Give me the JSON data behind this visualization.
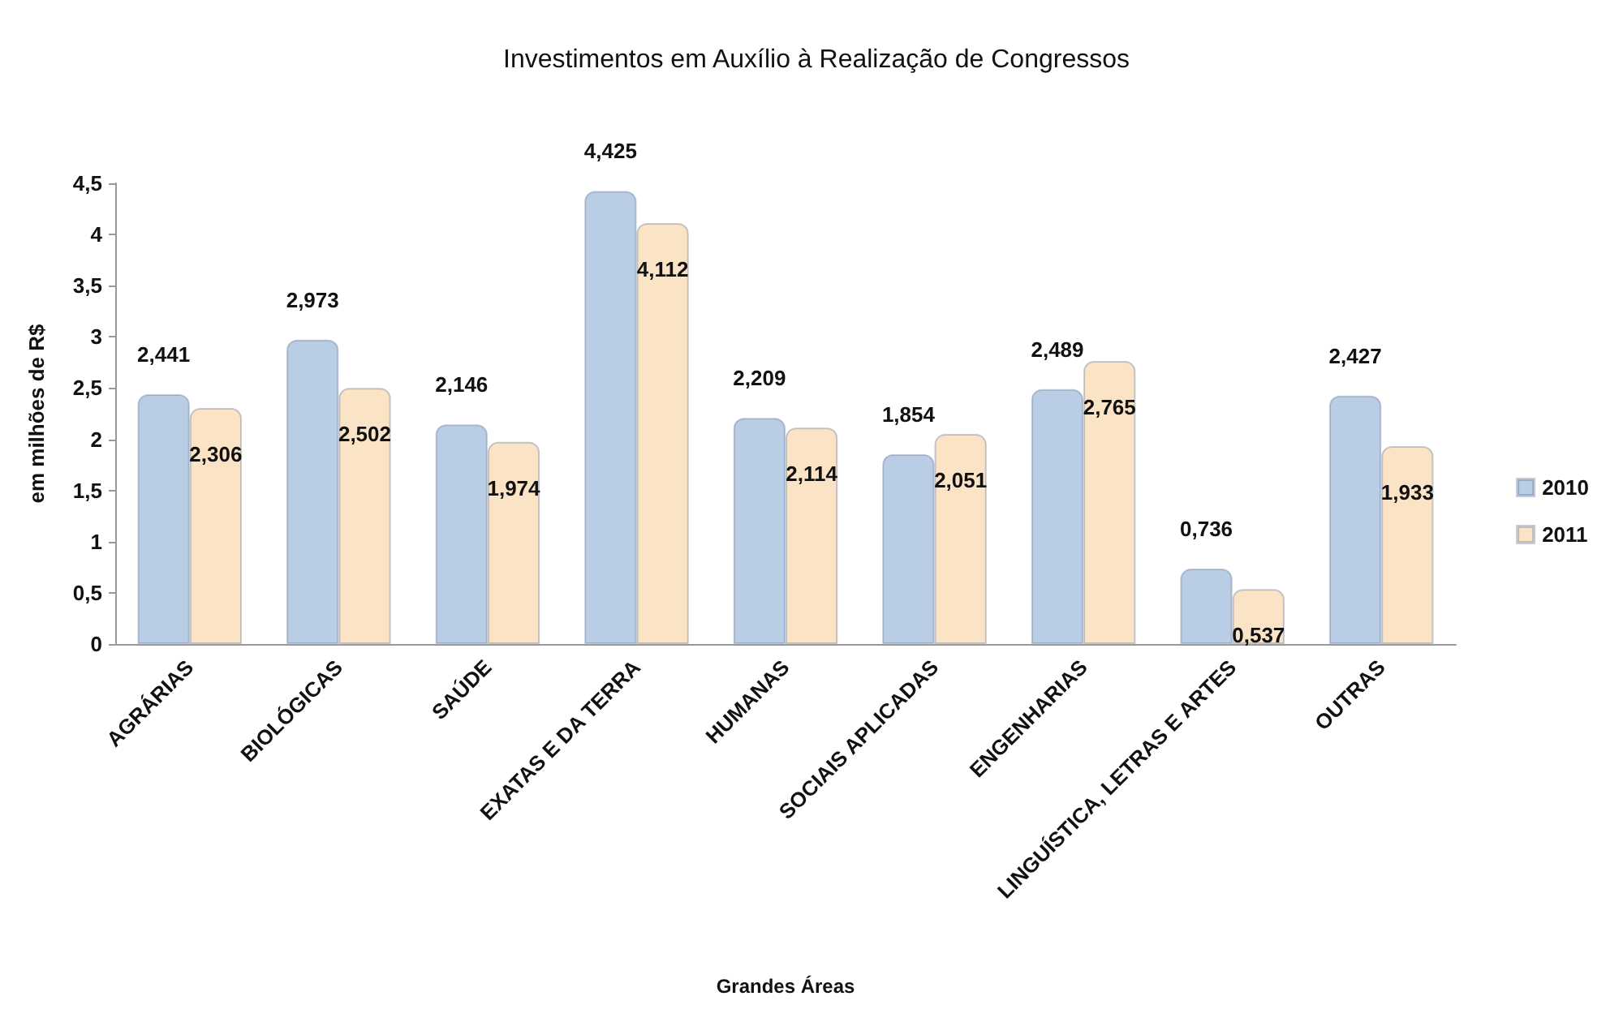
{
  "chart_data": {
    "type": "bar",
    "title": "Investimentos em Auxílio à Realização de Congressos",
    "xlabel": "Grandes Áreas",
    "ylabel": "em milhões de R$",
    "categories": [
      "AGRÁRIAS",
      "BIOLÓGICAS",
      "SAÚDE",
      "EXATAS E DA TERRA",
      "HUMANAS",
      "SOCIAIS APLICADAS",
      "ENGENHARIAS",
      "LINGUÍSTICA, LETRAS E ARTES",
      "OUTRAS"
    ],
    "series": [
      {
        "name": "2010",
        "color": "#b9cde5",
        "values": [
          2.441,
          2.973,
          2.146,
          4.425,
          2.209,
          1.854,
          2.489,
          0.736,
          2.427
        ],
        "value_labels": [
          "2,441",
          "2,973",
          "2,146",
          "4,425",
          "2,209",
          "1,854",
          "2,489",
          "0,736",
          "2,427"
        ]
      },
      {
        "name": "2011",
        "color": "#fbe3c6",
        "values": [
          2.306,
          2.502,
          1.974,
          4.112,
          2.114,
          2.051,
          2.765,
          0.537,
          1.933
        ],
        "value_labels": [
          "2,306",
          "2,502",
          "1,974",
          "4,112",
          "2,114",
          "2,051",
          "2,765",
          "0,537",
          "1,933"
        ]
      }
    ],
    "ylim": [
      0,
      4.5
    ],
    "yticks": [
      0,
      {
        "value": 0.5,
        "label": "0,5"
      },
      1,
      {
        "value": 1.5,
        "label": "1,5"
      },
      2,
      {
        "value": 2.5,
        "label": "2,5"
      },
      3,
      {
        "value": 3.5,
        "label": "3,5"
      },
      4,
      {
        "value": 4.5,
        "label": "4,5"
      }
    ],
    "grid": false,
    "legend": "right"
  }
}
